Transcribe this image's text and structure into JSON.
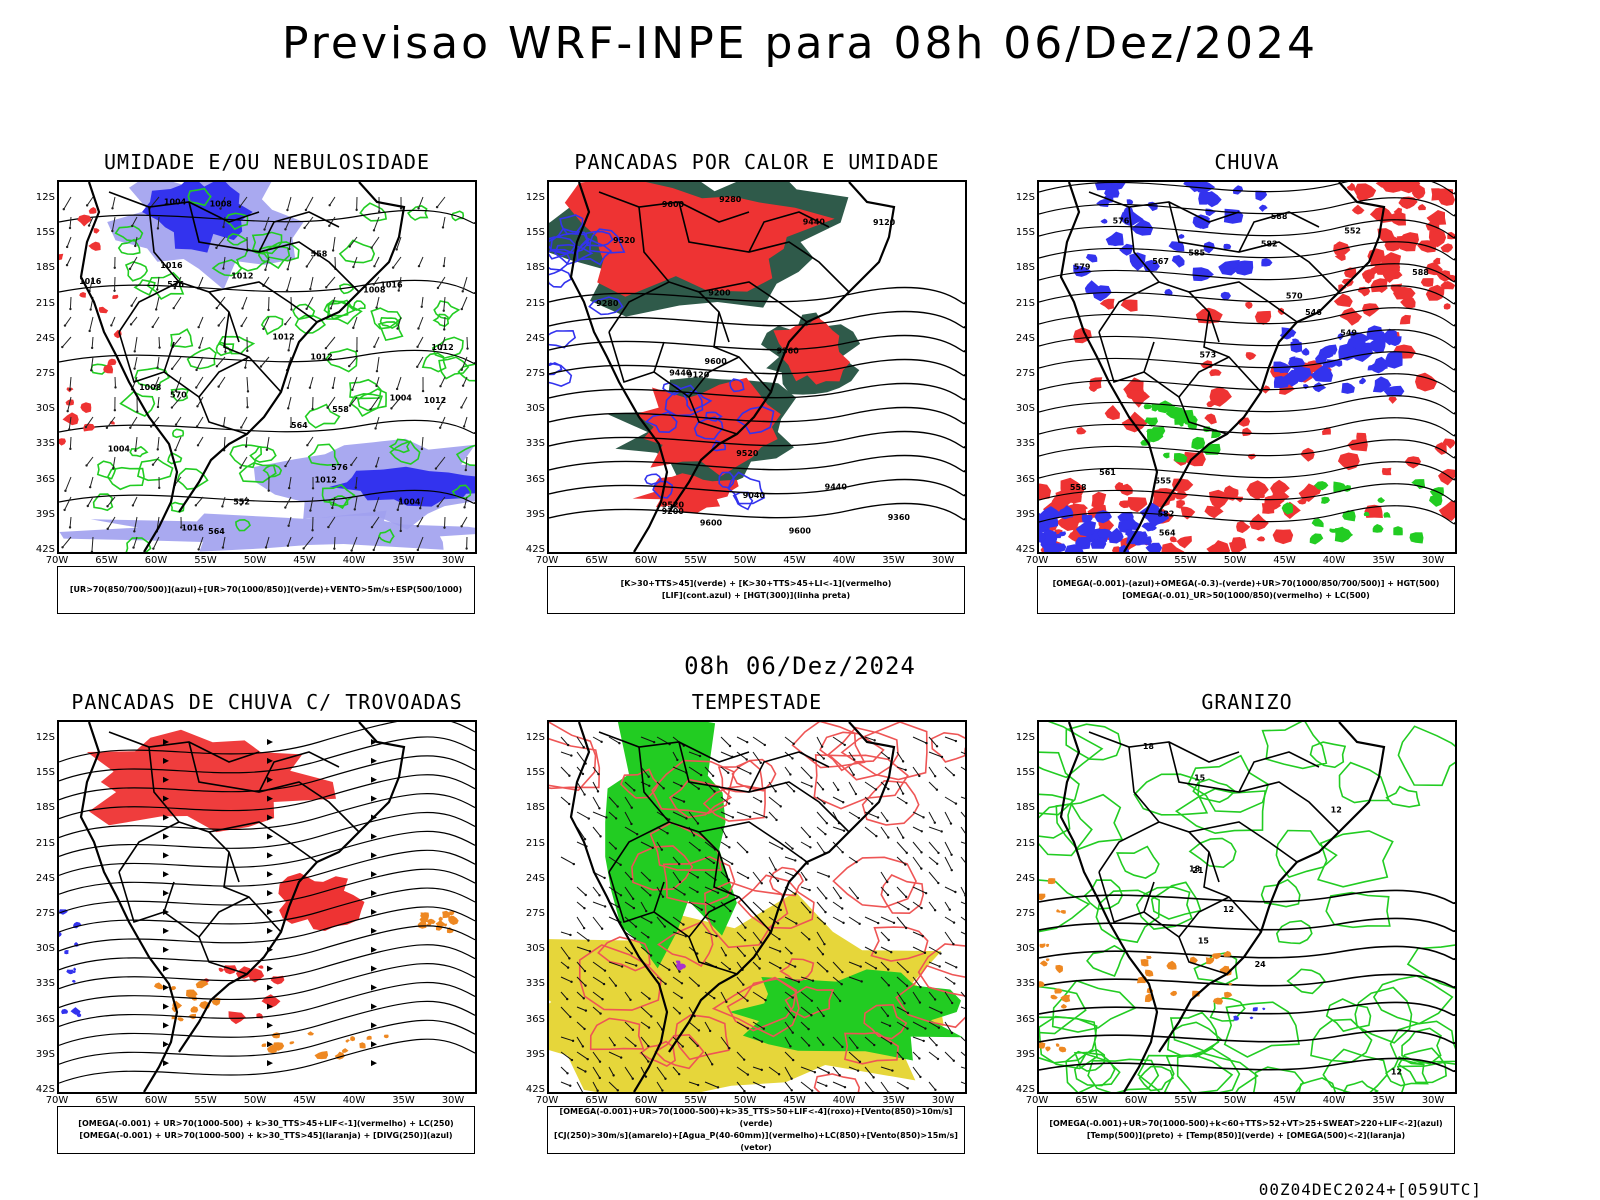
{
  "title": "Previsao WRF-INPE  para 08h 06/Dez/2024",
  "mid_date": "08h 06/Dez/2024",
  "footer": "00Z04DEC2024+[059UTC]",
  "lat_labels": [
    "12S",
    "15S",
    "18S",
    "21S",
    "24S",
    "27S",
    "30S",
    "33S",
    "36S",
    "39S",
    "42S"
  ],
  "lon_labels": [
    "70W",
    "65W",
    "60W",
    "55W",
    "50W",
    "45W",
    "40W",
    "35W",
    "30W"
  ],
  "colors": {
    "blue": "#3333ee",
    "lightblue": "#a0a0ee",
    "green": "#22cc22",
    "red": "#ee3333",
    "orange": "#ee8822",
    "yellow": "#e6d63a",
    "darkgreen": "#2f5a4a",
    "black": "#000000"
  },
  "panels": [
    {
      "id": "umidade",
      "title": "UMIDADE E/OU NEBULOSIDADE",
      "legend": [
        "[UR>70(850/700/500)](azul)+[UR>70(1000/850)](verde)+VENTO>5m/s+ESP(500/1000)"
      ],
      "labels": [
        "1012",
        "1012",
        "1008",
        "1012",
        "1016",
        "1016",
        "1012",
        "1004",
        "1012",
        "1012",
        "1016",
        "1004",
        "1004",
        "1004",
        "1008",
        "1008",
        "1016",
        "576",
        "576",
        "570",
        "564",
        "558",
        "552",
        "564",
        "558"
      ]
    },
    {
      "id": "pancadas_calor",
      "title": "PANCADAS POR CALOR E UMIDADE",
      "legend": [
        "[K>30+TTS>45](verde) + [K>30+TTS>45+LI<-1](vermelho)",
        "[LIF](cont.azul) + [HGT(300)](linha preta)"
      ],
      "labels": [
        "9600",
        "9600",
        "9520",
        "9440",
        "9600",
        "9520",
        "9440",
        "9360",
        "9280",
        "9200",
        "9120",
        "9040",
        "9600",
        "9520",
        "9440",
        "9360",
        "9280",
        "9200",
        "9120"
      ]
    },
    {
      "id": "chuva",
      "title": "CHUVA",
      "legend": [
        "[OMEGA(-0.001)-(azul)+OMEGA(-0.3)-(verde)+UR>70(1000/850/700/500)] + HGT(500)",
        "[OMEGA(-0.01)_UR>50(1000/850)(vermelho) + LC(500)"
      ],
      "labels": [
        "582",
        "588",
        "588",
        "585",
        "582",
        "579",
        "576",
        "573",
        "570",
        "567",
        "564",
        "561",
        "558",
        "555",
        "552",
        "549",
        "546"
      ]
    },
    {
      "id": "trovoadas",
      "title": "PANCADAS DE CHUVA C/ TROVOADAS",
      "legend": [
        "[OMEGA(-0.001) + UR>70(1000-500) + k>30_TTS>45+LIF<-1](vermelho) + LC(250)",
        "[OMEGA(-0.001) + UR>70(1000-500) + k>30_TTS>45](laranja) + [DIVG(250)](azul)"
      ],
      "labels": []
    },
    {
      "id": "tempestade",
      "title": "TEMPESTADE",
      "legend": [
        "[OMEGA(-0.001)+UR>70(1000-500)+k>35_TTS>50+LIF<-4](roxo)+[Vento(850)>10m/s](verde)",
        "[CJ(250)>30m/s](amarelo)+[Agua_P(40-60mm)](vermelho)+LC(850)+[Vento(850)>15m/s](vetor)"
      ],
      "labels": []
    },
    {
      "id": "granizo",
      "title": "GRANIZO",
      "legend": [
        "[OMEGA(-0.001)+UR>70(1000-500)+k<60+TTS>52+VT>25+SWEAT>220+LIF<-2](azul)",
        "[Temp(500)](preto) + [Temp(850)](verde) + [OMEGA(500)<-2](laranja)"
      ],
      "labels": [
        "12",
        "12",
        "15",
        "18",
        "21",
        "24",
        "18",
        "15",
        "12"
      ]
    }
  ]
}
